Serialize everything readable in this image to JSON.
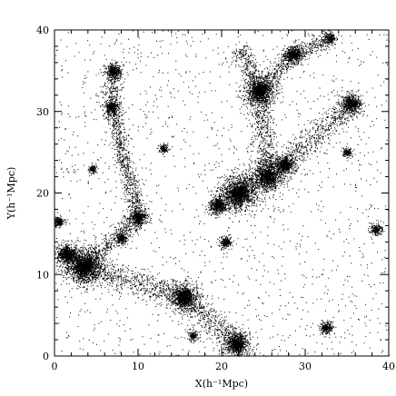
{
  "chart_data": {
    "type": "scatter",
    "title": "",
    "xlabel": "X(h⁻¹Mpc)",
    "ylabel": "Y(h⁻¹Mpc)",
    "xlim": [
      0,
      40
    ],
    "ylim": [
      0,
      40
    ],
    "xticks": [
      0,
      10,
      20,
      30,
      40
    ],
    "yticks": [
      0,
      10,
      20,
      30,
      40
    ],
    "grid": false,
    "legend": "none",
    "point_color": "#000000",
    "series": [
      {
        "clusters": [
          {
            "x": 3.5,
            "y": 11.0,
            "r": 2.3,
            "density": 1.0
          },
          {
            "x": 1.5,
            "y": 12.5,
            "r": 1.4,
            "density": 0.7
          },
          {
            "x": 24.5,
            "y": 32.5,
            "r": 1.8,
            "density": 0.9
          },
          {
            "x": 22.0,
            "y": 20.0,
            "r": 2.2,
            "density": 0.9
          },
          {
            "x": 25.5,
            "y": 22.0,
            "r": 1.8,
            "density": 0.8
          },
          {
            "x": 27.5,
            "y": 23.5,
            "r": 1.3,
            "density": 0.6
          },
          {
            "x": 19.5,
            "y": 18.5,
            "r": 1.2,
            "density": 0.6
          },
          {
            "x": 15.5,
            "y": 7.3,
            "r": 1.8,
            "density": 0.8
          },
          {
            "x": 21.8,
            "y": 1.5,
            "r": 1.6,
            "density": 0.8
          },
          {
            "x": 35.5,
            "y": 31.0,
            "r": 1.3,
            "density": 0.7
          },
          {
            "x": 28.5,
            "y": 37.0,
            "r": 1.2,
            "density": 0.6
          },
          {
            "x": 7.0,
            "y": 35.0,
            "r": 1.0,
            "density": 0.6
          },
          {
            "x": 6.8,
            "y": 30.5,
            "r": 1.0,
            "density": 0.5
          },
          {
            "x": 10.0,
            "y": 17.0,
            "r": 1.1,
            "density": 0.6
          },
          {
            "x": 20.5,
            "y": 14.0,
            "r": 0.8,
            "density": 0.4
          },
          {
            "x": 32.5,
            "y": 3.5,
            "r": 0.9,
            "density": 0.4
          },
          {
            "x": 8.0,
            "y": 14.5,
            "r": 0.8,
            "density": 0.4
          },
          {
            "x": 38.5,
            "y": 15.5,
            "r": 0.8,
            "density": 0.4
          },
          {
            "x": 35.0,
            "y": 25.0,
            "r": 0.7,
            "density": 0.3
          },
          {
            "x": 33.0,
            "y": 39.0,
            "r": 0.8,
            "density": 0.4
          },
          {
            "x": 13.0,
            "y": 25.5,
            "r": 0.7,
            "density": 0.3
          },
          {
            "x": 0.5,
            "y": 16.5,
            "r": 0.7,
            "density": 0.4
          },
          {
            "x": 16.5,
            "y": 2.5,
            "r": 0.7,
            "density": 0.3
          },
          {
            "x": 4.5,
            "y": 23.0,
            "r": 0.6,
            "density": 0.3
          }
        ],
        "filaments": [
          {
            "from": [
              3.5,
              11.0
            ],
            "to": [
              15.5,
              7.3
            ],
            "width": 0.8
          },
          {
            "from": [
              15.5,
              7.3
            ],
            "to": [
              21.8,
              1.5
            ],
            "width": 0.8
          },
          {
            "from": [
              19.5,
              18.5
            ],
            "to": [
              27.5,
              23.5
            ],
            "width": 1.0
          },
          {
            "from": [
              27.5,
              23.5
            ],
            "to": [
              35.5,
              31.0
            ],
            "width": 0.8
          },
          {
            "from": [
              24.5,
              32.5
            ],
            "to": [
              25.5,
              22.0
            ],
            "width": 0.7
          },
          {
            "from": [
              22.0,
              38.0
            ],
            "to": [
              24.5,
              32.5
            ],
            "width": 0.6
          },
          {
            "from": [
              7.0,
              35.0
            ],
            "to": [
              6.8,
              30.5
            ],
            "width": 0.5
          },
          {
            "from": [
              6.8,
              30.5
            ],
            "to": [
              10.0,
              17.0
            ],
            "width": 0.5
          },
          {
            "from": [
              10.0,
              17.0
            ],
            "to": [
              3.5,
              11.0
            ],
            "width": 0.6
          },
          {
            "from": [
              28.5,
              37.0
            ],
            "to": [
              24.5,
              32.5
            ],
            "width": 0.5
          },
          {
            "from": [
              33.0,
              39.0
            ],
            "to": [
              28.5,
              37.0
            ],
            "width": 0.5
          }
        ],
        "background_density": 0.35
      }
    ]
  }
}
